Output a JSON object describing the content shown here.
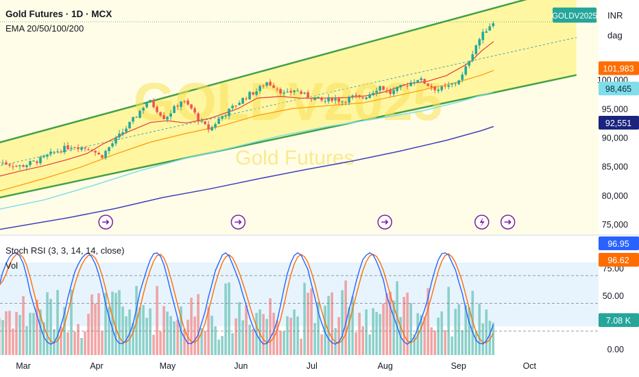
{
  "header": {
    "title": "Gold Futures · 1D · MCX",
    "indicator": "EMA 20/50/100/200",
    "watermark_symbol": "GOLDV2025",
    "watermark_name": "Gold Futures"
  },
  "symbol_badge": "GOLDV2025",
  "currency": "INR",
  "unit": "dag",
  "price_badges": [
    {
      "value": 101983,
      "label": "101,983",
      "color": "#ff6d00"
    },
    {
      "value": 98465,
      "label": "98,465",
      "color": "#80deea"
    },
    {
      "value": 92551,
      "label": "92,551",
      "color": "#1a237e"
    }
  ],
  "price_axis": {
    "ticks": [
      {
        "value": 75000,
        "label": "75,000"
      },
      {
        "value": 80000,
        "label": "80,000"
      },
      {
        "value": 85000,
        "label": "85,000"
      },
      {
        "value": 90000,
        "label": "90,000"
      },
      {
        "value": 95000,
        "label": "95,000"
      },
      {
        "value": 100000,
        "label": "100,000"
      }
    ]
  },
  "lower_pane": {
    "stoch_label": "Stoch RSI (3, 3, 14, 14, close)",
    "vol_label": "Vol",
    "badges": [
      {
        "value": 96.95,
        "label": "96.95",
        "color": "#2962ff"
      },
      {
        "value": 96.62,
        "label": "96.62",
        "color": "#ff6d00"
      },
      {
        "value": 7.08,
        "label": "7.08 K",
        "color": "#26a69a"
      }
    ],
    "ticks": [
      {
        "value": 75,
        "label": "75.00"
      },
      {
        "value": 50,
        "label": "50.00"
      },
      {
        "value": 0,
        "label": "0.00"
      }
    ]
  },
  "time_axis": {
    "labels": [
      {
        "day": 0,
        "label": "Mar"
      },
      {
        "day": 31,
        "label": "Apr"
      },
      {
        "day": 61,
        "label": "May"
      },
      {
        "day": 92,
        "label": "Jun"
      },
      {
        "day": 122,
        "label": "Jul"
      },
      {
        "day": 153,
        "label": "Aug"
      },
      {
        "day": 184,
        "label": "Sep"
      },
      {
        "day": 214,
        "label": "Oct"
      }
    ]
  },
  "colors": {
    "channel_fill": "#fff59d",
    "channel_line": "#43a047",
    "ema20": "#e53935",
    "ema50": "#ff9800",
    "ema100": "#80deea",
    "ema200": "#3f3fbf",
    "up": "#26a69a",
    "down": "#ef5350",
    "stoch_k": "#2962ff",
    "stoch_d": "#ff6d00"
  },
  "chart_data": {
    "type": "candlestick",
    "x_unit": "days since Mar 1",
    "price_range": [
      73500,
      111000
    ],
    "channel": {
      "upper": [
        [
          -10,
          89000
        ],
        [
          195,
          111800
        ]
      ],
      "middle": [
        [
          -10,
          85000
        ],
        [
          235,
          107300
        ]
      ],
      "lower": [
        [
          -10,
          79500
        ],
        [
          235,
          100800
        ]
      ]
    },
    "ema20": [
      [
        -10,
        83200
      ],
      [
        0,
        84200
      ],
      [
        10,
        85100
      ],
      [
        20,
        86200
      ],
      [
        28,
        87200
      ],
      [
        35,
        88900
      ],
      [
        45,
        90900
      ],
      [
        55,
        92600
      ],
      [
        62,
        92900
      ],
      [
        70,
        92500
      ],
      [
        80,
        93300
      ],
      [
        92,
        95000
      ],
      [
        100,
        96800
      ],
      [
        110,
        97100
      ],
      [
        118,
        96800
      ],
      [
        128,
        96800
      ],
      [
        138,
        96900
      ],
      [
        146,
        97200
      ],
      [
        154,
        97900
      ],
      [
        164,
        99300
      ],
      [
        172,
        99700
      ],
      [
        180,
        100700
      ],
      [
        190,
        103000
      ],
      [
        195,
        105000
      ],
      [
        200,
        106600
      ]
    ],
    "ema50": [
      [
        -10,
        80600
      ],
      [
        10,
        82900
      ],
      [
        25,
        84800
      ],
      [
        40,
        87100
      ],
      [
        55,
        89200
      ],
      [
        70,
        90700
      ],
      [
        85,
        92000
      ],
      [
        100,
        93800
      ],
      [
        115,
        95000
      ],
      [
        130,
        95500
      ],
      [
        145,
        96000
      ],
      [
        160,
        97300
      ],
      [
        172,
        98400
      ],
      [
        185,
        99600
      ],
      [
        195,
        100800
      ],
      [
        200,
        101600
      ]
    ],
    "ema100": [
      [
        -10,
        77500
      ],
      [
        10,
        79200
      ],
      [
        30,
        81600
      ],
      [
        50,
        84200
      ],
      [
        70,
        86400
      ],
      [
        90,
        88300
      ],
      [
        110,
        90300
      ],
      [
        130,
        91900
      ],
      [
        150,
        93200
      ],
      [
        170,
        94600
      ],
      [
        185,
        96100
      ],
      [
        195,
        97300
      ],
      [
        200,
        97900
      ]
    ],
    "ema200": [
      [
        -10,
        74000
      ],
      [
        20,
        76100
      ],
      [
        40,
        77700
      ],
      [
        60,
        79600
      ],
      [
        80,
        81100
      ],
      [
        100,
        82800
      ],
      [
        120,
        84400
      ],
      [
        140,
        85900
      ],
      [
        160,
        87600
      ],
      [
        180,
        89500
      ],
      [
        195,
        91200
      ],
      [
        200,
        91900
      ]
    ],
    "price_path": [
      [
        -10,
        85800
      ],
      [
        0,
        85000
      ],
      [
        8,
        86100
      ],
      [
        15,
        87600
      ],
      [
        22,
        88600
      ],
      [
        30,
        88000
      ],
      [
        34,
        86600
      ],
      [
        38,
        88600
      ],
      [
        44,
        91300
      ],
      [
        49,
        93800
      ],
      [
        54,
        96500
      ],
      [
        57,
        95100
      ],
      [
        61,
        93300
      ],
      [
        64,
        94600
      ],
      [
        68,
        96400
      ],
      [
        72,
        95100
      ],
      [
        76,
        92600
      ],
      [
        80,
        91300
      ],
      [
        84,
        93300
      ],
      [
        88,
        94600
      ],
      [
        92,
        96000
      ],
      [
        96,
        97300
      ],
      [
        100,
        98100
      ],
      [
        104,
        99600
      ],
      [
        108,
        98700
      ],
      [
        112,
        97300
      ],
      [
        116,
        98300
      ],
      [
        120,
        97300
      ],
      [
        124,
        96900
      ],
      [
        128,
        96200
      ],
      [
        132,
        96800
      ],
      [
        136,
        96300
      ],
      [
        140,
        97000
      ],
      [
        144,
        96700
      ],
      [
        148,
        97700
      ],
      [
        152,
        98900
      ],
      [
        156,
        97600
      ],
      [
        160,
        98500
      ],
      [
        164,
        99300
      ],
      [
        168,
        100200
      ],
      [
        172,
        99200
      ],
      [
        176,
        98300
      ],
      [
        180,
        98600
      ],
      [
        184,
        99500
      ],
      [
        187,
        100800
      ],
      [
        190,
        103800
      ],
      [
        193,
        106400
      ],
      [
        196,
        108200
      ],
      [
        198,
        109300
      ],
      [
        200,
        110000
      ]
    ],
    "markers": [
      {
        "day": 36,
        "type": "event"
      },
      {
        "day": 92,
        "type": "event"
      },
      {
        "day": 154,
        "type": "event"
      },
      {
        "day": 195,
        "type": "dividend"
      },
      {
        "day": 206,
        "type": "event"
      }
    ],
    "stoch_k_last": 96.95,
    "stoch_d_last": 96.62,
    "volume_last": 7080
  }
}
